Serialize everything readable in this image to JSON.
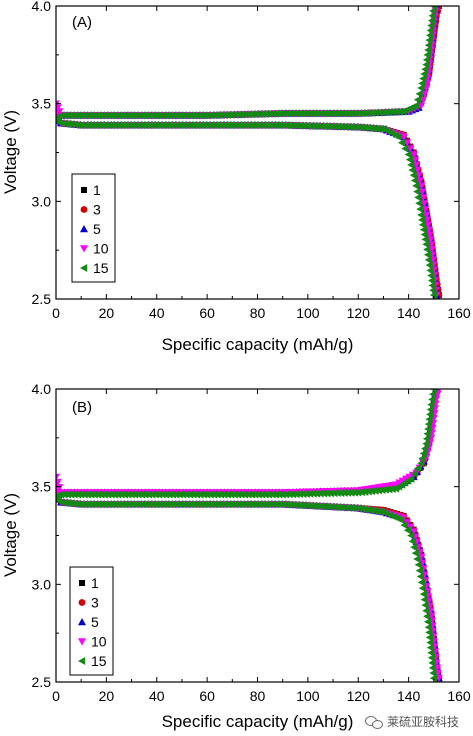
{
  "watermark": "莱硫亚胺科技",
  "chart_data": [
    {
      "type": "scatter",
      "panel_label": "(A)",
      "xlabel": "Specific capacity (mAh/g)",
      "ylabel": "Voltage (V)",
      "xlim": [
        0,
        160
      ],
      "ylim": [
        2.5,
        4.0
      ],
      "xticks": [
        "0",
        "20",
        "40",
        "60",
        "80",
        "100",
        "120",
        "140",
        "160"
      ],
      "yticks": [
        "2.5",
        "3.0",
        "3.5",
        "4.0"
      ],
      "legend_position": "left-middle",
      "series": [
        {
          "name": "1",
          "marker": "square",
          "color": "#000000",
          "charge_x": [
            0,
            2,
            10,
            30,
            60,
            90,
            120,
            140,
            144,
            146,
            148,
            149,
            150,
            151,
            152
          ],
          "charge_y": [
            3.42,
            3.44,
            3.44,
            3.44,
            3.44,
            3.45,
            3.45,
            3.46,
            3.48,
            3.55,
            3.65,
            3.75,
            3.85,
            3.95,
            4.0
          ],
          "discharge_x": [
            0,
            2,
            10,
            30,
            60,
            90,
            120,
            130,
            138,
            142,
            145,
            147,
            149,
            150,
            151,
            152
          ],
          "discharge_y": [
            3.42,
            3.4,
            3.39,
            3.39,
            3.39,
            3.39,
            3.38,
            3.37,
            3.34,
            3.25,
            3.1,
            2.95,
            2.8,
            2.7,
            2.6,
            2.52
          ]
        },
        {
          "name": "3",
          "marker": "circle",
          "color": "#d40000",
          "charge_x": [
            0,
            2,
            10,
            30,
            60,
            90,
            120,
            140,
            144,
            146,
            148,
            149,
            150,
            151,
            152
          ],
          "charge_y": [
            3.42,
            3.44,
            3.44,
            3.44,
            3.44,
            3.45,
            3.45,
            3.46,
            3.48,
            3.55,
            3.65,
            3.75,
            3.85,
            3.95,
            4.0
          ],
          "discharge_x": [
            0,
            2,
            10,
            30,
            60,
            90,
            120,
            130,
            138,
            142,
            145,
            147,
            149,
            150,
            151,
            152
          ],
          "discharge_y": [
            3.42,
            3.4,
            3.39,
            3.39,
            3.39,
            3.39,
            3.38,
            3.37,
            3.34,
            3.25,
            3.1,
            2.95,
            2.8,
            2.7,
            2.6,
            2.52
          ]
        },
        {
          "name": "5",
          "marker": "triangle-up",
          "color": "#0000cc",
          "charge_x": [
            0,
            2,
            10,
            30,
            60,
            90,
            120,
            140,
            144,
            146,
            148,
            149,
            150,
            151
          ],
          "charge_y": [
            3.42,
            3.44,
            3.44,
            3.44,
            3.44,
            3.45,
            3.45,
            3.46,
            3.48,
            3.56,
            3.67,
            3.78,
            3.9,
            4.0
          ],
          "discharge_x": [
            0,
            2,
            10,
            30,
            60,
            90,
            120,
            130,
            138,
            142,
            145,
            147,
            149,
            150,
            151
          ],
          "discharge_y": [
            3.42,
            3.4,
            3.39,
            3.39,
            3.39,
            3.39,
            3.38,
            3.37,
            3.33,
            3.24,
            3.08,
            2.93,
            2.78,
            2.65,
            2.52
          ]
        },
        {
          "name": "10",
          "marker": "triangle-down",
          "color": "#ff00ff",
          "charge_x": [
            0,
            2,
            10,
            30,
            60,
            90,
            120,
            140,
            145,
            147,
            148,
            149,
            150,
            151
          ],
          "charge_y": [
            3.5,
            3.44,
            3.44,
            3.44,
            3.44,
            3.45,
            3.45,
            3.46,
            3.49,
            3.58,
            3.68,
            3.78,
            3.9,
            4.0
          ],
          "discharge_x": [
            0,
            2,
            10,
            30,
            60,
            90,
            120,
            130,
            138,
            142,
            145,
            147,
            149,
            150,
            151
          ],
          "discharge_y": [
            3.45,
            3.4,
            3.39,
            3.39,
            3.39,
            3.39,
            3.38,
            3.37,
            3.33,
            3.24,
            3.08,
            2.93,
            2.78,
            2.65,
            2.52
          ]
        },
        {
          "name": "15",
          "marker": "triangle-left",
          "color": "#138a13",
          "charge_x": [
            0,
            2,
            10,
            30,
            60,
            90,
            120,
            138,
            143,
            145,
            147,
            148,
            149,
            150
          ],
          "charge_y": [
            3.42,
            3.44,
            3.44,
            3.44,
            3.44,
            3.45,
            3.45,
            3.46,
            3.49,
            3.58,
            3.7,
            3.8,
            3.9,
            4.0
          ],
          "discharge_x": [
            0,
            2,
            10,
            30,
            60,
            90,
            120,
            130,
            136,
            140,
            143,
            145,
            147,
            149,
            150
          ],
          "discharge_y": [
            3.42,
            3.4,
            3.39,
            3.39,
            3.39,
            3.39,
            3.38,
            3.37,
            3.33,
            3.24,
            3.08,
            2.93,
            2.78,
            2.62,
            2.52
          ]
        }
      ]
    },
    {
      "type": "scatter",
      "panel_label": "(B)",
      "xlabel": "Specific capacity (mAh/g)",
      "ylabel": "Voltage (V)",
      "xlim": [
        0,
        160
      ],
      "ylim": [
        2.5,
        4.0
      ],
      "xticks": [
        "0",
        "20",
        "40",
        "60",
        "80",
        "100",
        "120",
        "140",
        "160"
      ],
      "yticks": [
        "2.5",
        "3.0",
        "3.5",
        "4.0"
      ],
      "legend_position": "bottom-left",
      "series": [
        {
          "name": "1",
          "marker": "square",
          "color": "#000000",
          "charge_x": [
            0,
            2,
            10,
            30,
            60,
            90,
            120,
            135,
            142,
            146,
            148,
            149,
            150,
            151
          ],
          "charge_y": [
            3.45,
            3.47,
            3.47,
            3.47,
            3.47,
            3.47,
            3.48,
            3.5,
            3.55,
            3.62,
            3.72,
            3.82,
            3.92,
            4.0
          ],
          "discharge_x": [
            0,
            2,
            10,
            30,
            60,
            90,
            120,
            130,
            138,
            142,
            145,
            147,
            149,
            150,
            151,
            152
          ],
          "discharge_y": [
            3.45,
            3.42,
            3.41,
            3.41,
            3.41,
            3.41,
            3.39,
            3.38,
            3.35,
            3.28,
            3.15,
            3.0,
            2.85,
            2.72,
            2.6,
            2.52
          ]
        },
        {
          "name": "3",
          "marker": "circle",
          "color": "#d40000",
          "charge_x": [
            0,
            2,
            10,
            30,
            60,
            90,
            120,
            135,
            142,
            146,
            148,
            149,
            150,
            151
          ],
          "charge_y": [
            3.45,
            3.47,
            3.47,
            3.47,
            3.47,
            3.47,
            3.48,
            3.5,
            3.55,
            3.62,
            3.72,
            3.82,
            3.92,
            4.0
          ],
          "discharge_x": [
            0,
            2,
            10,
            30,
            60,
            90,
            120,
            130,
            138,
            142,
            145,
            147,
            149,
            150,
            151,
            152
          ],
          "discharge_y": [
            3.45,
            3.42,
            3.41,
            3.41,
            3.41,
            3.41,
            3.39,
            3.38,
            3.35,
            3.28,
            3.15,
            3.0,
            2.85,
            2.72,
            2.6,
            2.52
          ]
        },
        {
          "name": "5",
          "marker": "triangle-up",
          "color": "#0000cc",
          "charge_x": [
            0,
            2,
            10,
            30,
            60,
            90,
            120,
            135,
            142,
            146,
            148,
            149,
            150,
            151
          ],
          "charge_y": [
            3.45,
            3.47,
            3.47,
            3.47,
            3.47,
            3.47,
            3.48,
            3.5,
            3.55,
            3.63,
            3.73,
            3.83,
            3.93,
            4.0
          ],
          "discharge_x": [
            0,
            2,
            10,
            30,
            60,
            90,
            120,
            130,
            138,
            142,
            145,
            147,
            149,
            150,
            151,
            152
          ],
          "discharge_y": [
            3.45,
            3.42,
            3.41,
            3.41,
            3.41,
            3.41,
            3.39,
            3.37,
            3.34,
            3.27,
            3.14,
            2.99,
            2.84,
            2.71,
            2.6,
            2.52
          ]
        },
        {
          "name": "10",
          "marker": "triangle-down",
          "color": "#ff00ff",
          "charge_x": [
            0,
            2,
            10,
            30,
            60,
            90,
            120,
            135,
            143,
            147,
            149,
            150,
            151,
            152
          ],
          "charge_y": [
            3.55,
            3.47,
            3.47,
            3.47,
            3.47,
            3.47,
            3.48,
            3.51,
            3.57,
            3.65,
            3.75,
            3.85,
            3.95,
            4.0
          ],
          "discharge_x": [
            0,
            2,
            10,
            30,
            60,
            90,
            120,
            130,
            138,
            142,
            145,
            147,
            149,
            150,
            151,
            152
          ],
          "discharge_y": [
            3.5,
            3.42,
            3.41,
            3.41,
            3.41,
            3.41,
            3.39,
            3.37,
            3.34,
            3.27,
            3.14,
            2.99,
            2.84,
            2.71,
            2.6,
            2.52
          ]
        },
        {
          "name": "15",
          "marker": "triangle-left",
          "color": "#138a13",
          "charge_x": [
            0,
            2,
            10,
            30,
            60,
            90,
            120,
            135,
            141,
            145,
            147,
            148,
            149,
            150
          ],
          "charge_y": [
            3.45,
            3.46,
            3.46,
            3.46,
            3.46,
            3.46,
            3.47,
            3.49,
            3.54,
            3.62,
            3.72,
            3.82,
            3.92,
            4.0
          ],
          "discharge_x": [
            0,
            2,
            10,
            30,
            60,
            90,
            120,
            130,
            137,
            141,
            144,
            146,
            148,
            149,
            150
          ],
          "discharge_y": [
            3.44,
            3.42,
            3.41,
            3.41,
            3.41,
            3.41,
            3.39,
            3.37,
            3.33,
            3.25,
            3.1,
            2.95,
            2.78,
            2.65,
            2.52
          ]
        }
      ]
    }
  ]
}
